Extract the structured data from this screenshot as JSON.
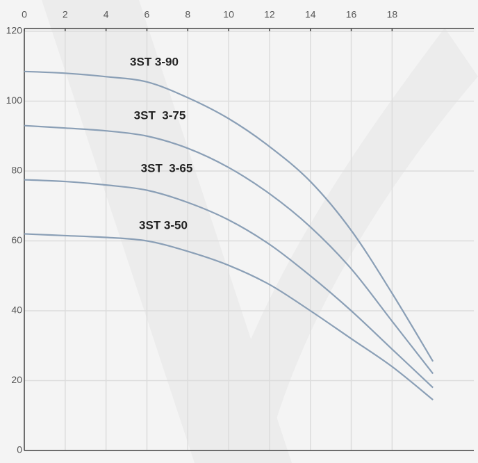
{
  "chart_data": {
    "type": "line",
    "x": [
      0,
      2,
      4,
      6,
      8,
      10,
      12,
      14,
      16,
      18,
      20
    ],
    "series": [
      {
        "name": "3ST 3-90",
        "color": "#8a9fb6",
        "values": [
          108.5,
          108,
          107,
          105.5,
          101,
          95,
          87,
          77,
          63,
          45,
          25.5
        ]
      },
      {
        "name": "3ST  3-75",
        "color": "#8a9fb6",
        "values": [
          93,
          92.3,
          91.5,
          90,
          86.5,
          81,
          73.5,
          64,
          52,
          37,
          22
        ]
      },
      {
        "name": "3ST  3-65",
        "color": "#8a9fb6",
        "values": [
          77.5,
          77,
          76,
          74.5,
          71,
          66,
          59,
          50,
          40,
          29,
          18
        ]
      },
      {
        "name": "3ST 3-50",
        "color": "#8a9fb6",
        "values": [
          62,
          61.5,
          61,
          60,
          57,
          53,
          47.5,
          40,
          32,
          24,
          14.5
        ]
      }
    ],
    "xlim": [
      0,
      22
    ],
    "xticks": [
      0,
      2,
      4,
      6,
      8,
      10,
      12,
      14,
      16,
      18
    ],
    "ylim": [
      0,
      120
    ],
    "yticks": [
      0,
      20,
      40,
      60,
      80,
      100,
      120
    ],
    "grid": true
  }
}
